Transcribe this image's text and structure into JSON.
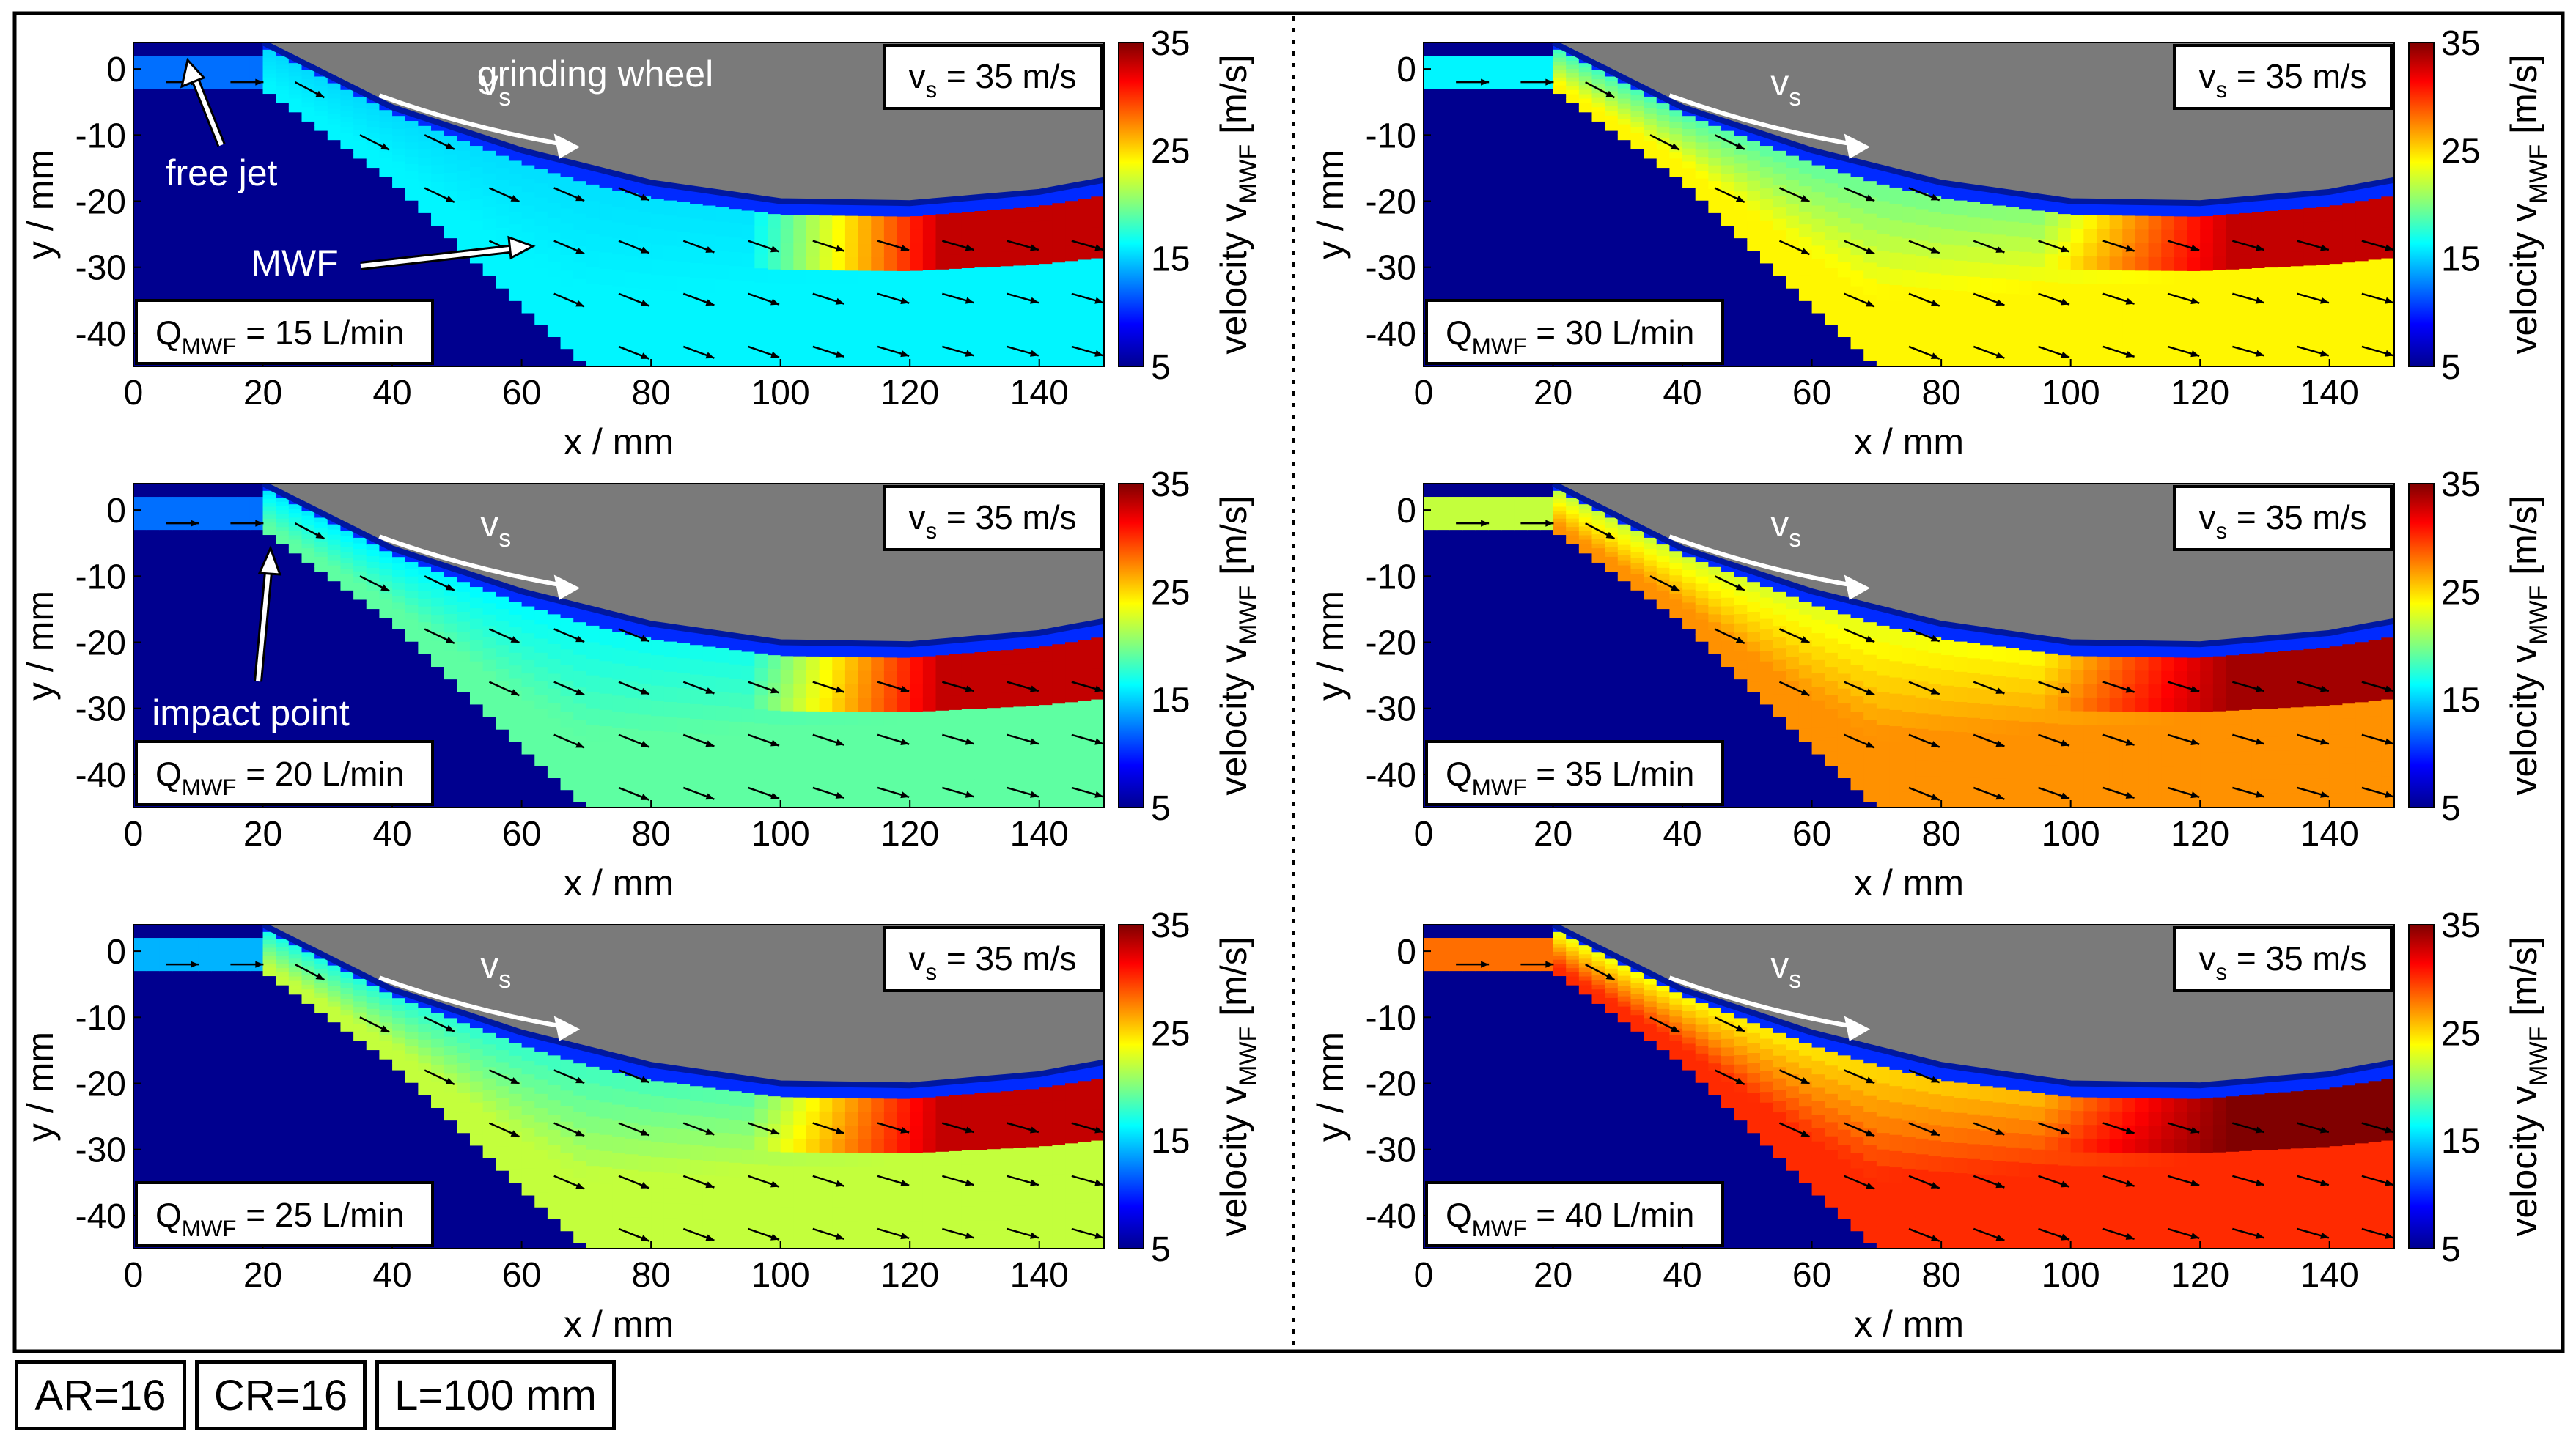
{
  "figure": {
    "wheel_label": "grinding wheel",
    "free_jet_label": "free jet",
    "mwf_label": "MWF",
    "impact_label": "impact point",
    "vs_main": "v",
    "vs_sub": "s",
    "vs_box_text": " = 35 m/s",
    "q_main": "Q",
    "q_sub": "MWF",
    "colorbar_label_main": "velocity v",
    "colorbar_label_sub": "MWF",
    "colorbar_label_unit": " [m/s]",
    "xlabel": "x / mm",
    "ylabel": "y / mm"
  },
  "chart_data": {
    "type": "heatmap",
    "description_units": "x and y in mm, velocity in m/s",
    "x_range": [
      0,
      150
    ],
    "y_range": [
      -45,
      4
    ],
    "x_ticks": [
      0,
      20,
      40,
      60,
      80,
      100,
      120,
      140
    ],
    "y_ticks": [
      0,
      -10,
      -20,
      -30,
      -40
    ],
    "colorbar_range": [
      5,
      35
    ],
    "colorbar_ticks": [
      5,
      15,
      25,
      35
    ],
    "wheel_surface_points": [
      [
        20,
        4
      ],
      [
        40,
        -5.8
      ],
      [
        60,
        -12.3
      ],
      [
        80,
        -17.2
      ],
      [
        100,
        -20
      ],
      [
        120,
        -20.3
      ],
      [
        140,
        -18.6
      ],
      [
        150,
        -16.8
      ]
    ],
    "jet_outer_edge_points": [
      [
        20,
        -3
      ],
      [
        40,
        -17
      ],
      [
        60,
        -36
      ],
      [
        70,
        -45
      ]
    ],
    "panels": [
      {
        "q_value": "15 L/min",
        "vs_value": "35 m/s",
        "jet_velocity": 12,
        "inner_velocity": 15,
        "outer_velocity": 16,
        "exit_velocity": 33,
        "annotations": [
          "free jet",
          "MWF",
          "grinding wheel"
        ]
      },
      {
        "q_value": "30 L/min",
        "vs_value": "35 m/s",
        "jet_velocity": 16,
        "inner_velocity": 17,
        "outer_velocity": 24,
        "exit_velocity": 33,
        "annotations": []
      },
      {
        "q_value": "20 L/min",
        "vs_value": "35 m/s",
        "jet_velocity": 12,
        "inner_velocity": 15,
        "outer_velocity": 19,
        "exit_velocity": 33,
        "annotations": [
          "impact point"
        ]
      },
      {
        "q_value": "35 L/min",
        "vs_value": "35 m/s",
        "jet_velocity": 22,
        "inner_velocity": 21,
        "outer_velocity": 27,
        "exit_velocity": 34,
        "annotations": []
      },
      {
        "q_value": "25 L/min",
        "vs_value": "35 m/s",
        "jet_velocity": 14,
        "inner_velocity": 16,
        "outer_velocity": 22,
        "exit_velocity": 33,
        "annotations": []
      },
      {
        "q_value": "40 L/min",
        "vs_value": "35 m/s",
        "jet_velocity": 28,
        "inner_velocity": 22,
        "outer_velocity": 30,
        "exit_velocity": 35,
        "annotations": []
      }
    ]
  },
  "footer": [
    {
      "label": "AR=16"
    },
    {
      "label": "CR=16"
    },
    {
      "label": "L=100 mm"
    }
  ]
}
